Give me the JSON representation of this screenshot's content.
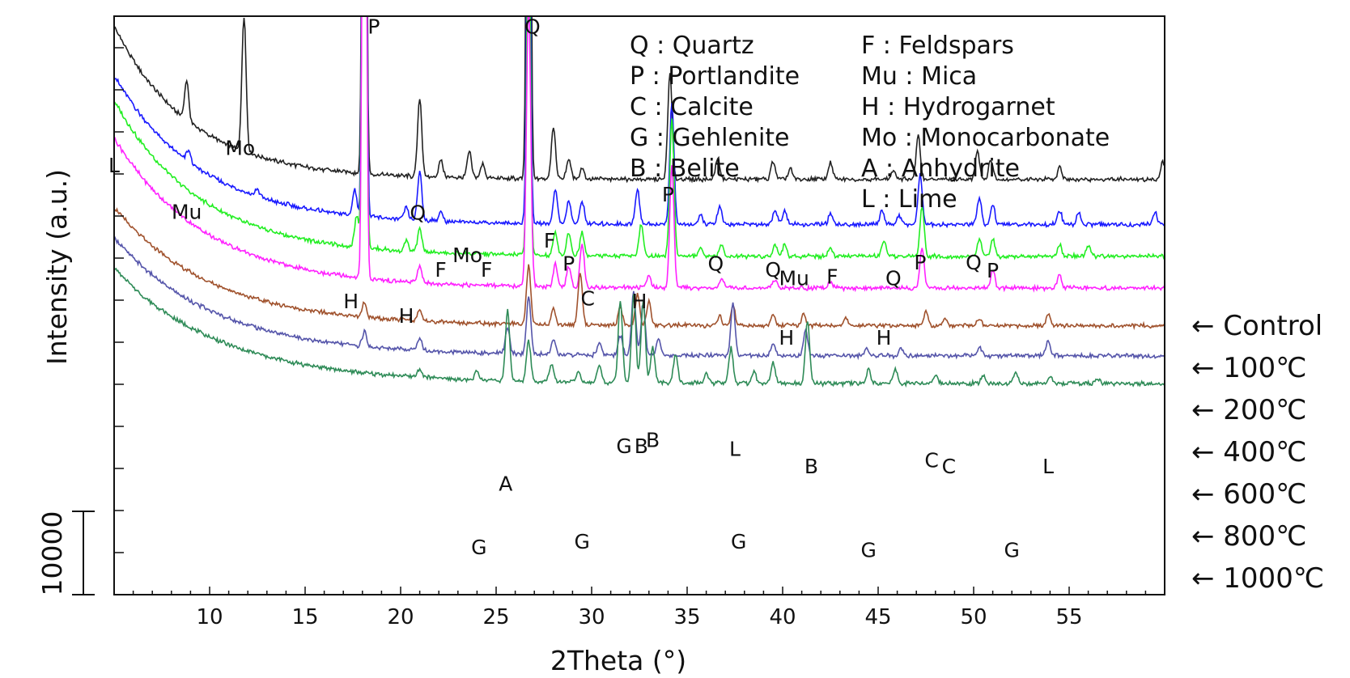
{
  "chart_data": {
    "type": "line",
    "xlabel": "2Theta (°)",
    "ylabel": "Intensity (a.u.)",
    "xlim": [
      5,
      60
    ],
    "x_ticks": [
      10,
      15,
      20,
      25,
      30,
      35,
      40,
      45,
      50,
      55
    ],
    "scale_bar_label": "10000",
    "legend": [
      {
        "text": "Q : Quartz"
      },
      {
        "text": "P : Portlandite"
      },
      {
        "text": "C : Calcite"
      },
      {
        "text": "G : Gehlenite"
      },
      {
        "text": "B : Belite"
      },
      {
        "text": "F : Feldspars"
      },
      {
        "text": "Mu : Mica"
      },
      {
        "text": "H : Hydrogarnet"
      },
      {
        "text": "Mo : Monocarbonate"
      },
      {
        "text": "A : Anhydrite"
      },
      {
        "text": "L : Lime"
      }
    ],
    "series": [
      {
        "name": "← Control",
        "color": "#222222",
        "base": 0.718,
        "rise": 0.265,
        "decay": 4.0,
        "peaks": [
          [
            8.8,
            0.068
          ],
          [
            11.8,
            0.235
          ],
          [
            18.1,
            1.5
          ],
          [
            21.0,
            0.135
          ],
          [
            22.1,
            0.03
          ],
          [
            23.6,
            0.045
          ],
          [
            24.3,
            0.025
          ],
          [
            26.7,
            1.5
          ],
          [
            28.0,
            0.09
          ],
          [
            28.8,
            0.035
          ],
          [
            29.5,
            0.02
          ],
          [
            34.1,
            0.185
          ],
          [
            36.6,
            0.038
          ],
          [
            39.5,
            0.032
          ],
          [
            40.4,
            0.018
          ],
          [
            42.5,
            0.028
          ],
          [
            45.8,
            0.015
          ],
          [
            47.1,
            0.075
          ],
          [
            50.2,
            0.05
          ],
          [
            50.9,
            0.035
          ],
          [
            54.5,
            0.02
          ],
          [
            59.9,
            0.03
          ]
        ]
      },
      {
        "name": "← 100℃",
        "color": "#1a1aff",
        "base": 0.64,
        "rise": 0.258,
        "decay": 4.5,
        "peaks": [
          [
            8.9,
            0.02
          ],
          [
            12.5,
            0.012
          ],
          [
            17.6,
            0.045
          ],
          [
            18.1,
            1.5
          ],
          [
            20.3,
            0.02
          ],
          [
            21.0,
            0.085
          ],
          [
            22.1,
            0.015
          ],
          [
            26.7,
            0.82
          ],
          [
            28.1,
            0.06
          ],
          [
            28.8,
            0.04
          ],
          [
            29.5,
            0.04
          ],
          [
            32.4,
            0.06
          ],
          [
            34.2,
            0.21
          ],
          [
            35.7,
            0.015
          ],
          [
            36.7,
            0.03
          ],
          [
            39.6,
            0.025
          ],
          [
            40.1,
            0.025
          ],
          [
            42.5,
            0.018
          ],
          [
            45.2,
            0.025
          ],
          [
            46.1,
            0.015
          ],
          [
            47.2,
            0.085
          ],
          [
            50.3,
            0.045
          ],
          [
            51.0,
            0.035
          ],
          [
            54.5,
            0.025
          ],
          [
            55.5,
            0.02
          ],
          [
            59.5,
            0.02
          ]
        ]
      },
      {
        "name": "← 200℃",
        "color": "#22ee22",
        "base": 0.585,
        "rise": 0.27,
        "decay": 4.5,
        "peaks": [
          [
            17.7,
            0.055
          ],
          [
            18.1,
            1.5
          ],
          [
            20.3,
            0.018
          ],
          [
            21.0,
            0.04
          ],
          [
            26.7,
            0.68
          ],
          [
            28.1,
            0.04
          ],
          [
            28.8,
            0.04
          ],
          [
            29.5,
            0.04
          ],
          [
            32.6,
            0.055
          ],
          [
            34.2,
            0.24
          ],
          [
            35.7,
            0.015
          ],
          [
            36.8,
            0.02
          ],
          [
            39.6,
            0.02
          ],
          [
            40.1,
            0.02
          ],
          [
            42.5,
            0.015
          ],
          [
            45.3,
            0.025
          ],
          [
            47.3,
            0.085
          ],
          [
            50.3,
            0.03
          ],
          [
            51.0,
            0.03
          ],
          [
            54.5,
            0.02
          ],
          [
            56.0,
            0.018
          ]
        ]
      },
      {
        "name": "← 400℃",
        "color": "#ff22ff",
        "base": 0.53,
        "rise": 0.26,
        "decay": 4.8,
        "peaks": [
          [
            18.1,
            1.5
          ],
          [
            21.0,
            0.03
          ],
          [
            26.7,
            0.5
          ],
          [
            28.1,
            0.04
          ],
          [
            28.8,
            0.035
          ],
          [
            29.5,
            0.075
          ],
          [
            33.0,
            0.02
          ],
          [
            34.2,
            0.21
          ],
          [
            36.8,
            0.015
          ],
          [
            39.6,
            0.015
          ],
          [
            42.5,
            0.012
          ],
          [
            47.3,
            0.07
          ],
          [
            51.0,
            0.03
          ],
          [
            54.5,
            0.025
          ]
        ]
      },
      {
        "name": "← 600℃",
        "color": "#a0522d",
        "base": 0.465,
        "rise": 0.205,
        "decay": 5.0,
        "peaks": [
          [
            18.1,
            0.025
          ],
          [
            21.0,
            0.02
          ],
          [
            26.7,
            0.1
          ],
          [
            28.0,
            0.025
          ],
          [
            29.4,
            0.09
          ],
          [
            31.5,
            0.03
          ],
          [
            32.4,
            0.055
          ],
          [
            33.0,
            0.04
          ],
          [
            36.7,
            0.015
          ],
          [
            37.4,
            0.035
          ],
          [
            39.5,
            0.02
          ],
          [
            41.1,
            0.02
          ],
          [
            43.3,
            0.012
          ],
          [
            47.5,
            0.025
          ],
          [
            48.5,
            0.012
          ],
          [
            50.3,
            0.012
          ],
          [
            53.9,
            0.02
          ]
        ]
      },
      {
        "name": "← 800℃",
        "color": "#5555aa",
        "base": 0.413,
        "rise": 0.205,
        "decay": 5.2,
        "peaks": [
          [
            18.1,
            0.025
          ],
          [
            21.0,
            0.02
          ],
          [
            25.6,
            0.045
          ],
          [
            26.7,
            0.1
          ],
          [
            28.0,
            0.025
          ],
          [
            30.4,
            0.02
          ],
          [
            31.5,
            0.035
          ],
          [
            32.2,
            0.11
          ],
          [
            32.7,
            0.09
          ],
          [
            33.5,
            0.03
          ],
          [
            37.4,
            0.09
          ],
          [
            39.5,
            0.02
          ],
          [
            41.2,
            0.045
          ],
          [
            44.4,
            0.012
          ],
          [
            46.2,
            0.012
          ],
          [
            50.3,
            0.015
          ],
          [
            53.9,
            0.025
          ]
        ]
      },
      {
        "name": "← 1000℃",
        "color": "#2e8b57",
        "base": 0.365,
        "rise": 0.2,
        "decay": 5.5,
        "peaks": [
          [
            21.0,
            0.015
          ],
          [
            24.0,
            0.015
          ],
          [
            25.6,
            0.12
          ],
          [
            26.7,
            0.07
          ],
          [
            27.9,
            0.03
          ],
          [
            29.3,
            0.02
          ],
          [
            30.4,
            0.03
          ],
          [
            31.5,
            0.14
          ],
          [
            32.2,
            0.15
          ],
          [
            32.7,
            0.14
          ],
          [
            33.2,
            0.06
          ],
          [
            34.4,
            0.05
          ],
          [
            36.0,
            0.015
          ],
          [
            37.3,
            0.06
          ],
          [
            38.5,
            0.02
          ],
          [
            39.5,
            0.035
          ],
          [
            41.3,
            0.11
          ],
          [
            44.5,
            0.025
          ],
          [
            45.9,
            0.025
          ],
          [
            48.0,
            0.015
          ],
          [
            50.5,
            0.015
          ],
          [
            52.2,
            0.02
          ],
          [
            54.0,
            0.012
          ],
          [
            56.5,
            0.01
          ]
        ]
      }
    ],
    "peak_annotations": [
      {
        "text": "P",
        "x": 18.6,
        "y": 0.97
      },
      {
        "text": "Q",
        "x": 26.9,
        "y": 0.97
      },
      {
        "text": "Mo",
        "x": 11.6,
        "y": 0.76
      },
      {
        "text": "Mu",
        "x": 8.8,
        "y": 0.65
      },
      {
        "text": "L",
        "x": 5.0,
        "y": 0.73
      },
      {
        "text": "Q",
        "x": 20.9,
        "y": 0.648
      },
      {
        "text": "F",
        "x": 22.1,
        "y": 0.55
      },
      {
        "text": "Mo",
        "x": 23.5,
        "y": 0.575
      },
      {
        "text": "F",
        "x": 24.5,
        "y": 0.55
      },
      {
        "text": "F",
        "x": 27.8,
        "y": 0.6
      },
      {
        "text": "P",
        "x": 28.8,
        "y": 0.56
      },
      {
        "text": "P",
        "x": 34.0,
        "y": 0.68
      },
      {
        "text": "Q",
        "x": 36.5,
        "y": 0.56
      },
      {
        "text": "Q",
        "x": 39.5,
        "y": 0.55
      },
      {
        "text": "Mu",
        "x": 40.6,
        "y": 0.535
      },
      {
        "text": "F",
        "x": 42.6,
        "y": 0.538
      },
      {
        "text": "Q",
        "x": 45.8,
        "y": 0.535
      },
      {
        "text": "P",
        "x": 47.2,
        "y": 0.562
      },
      {
        "text": "Q",
        "x": 50.0,
        "y": 0.562
      },
      {
        "text": "P",
        "x": 51.0,
        "y": 0.548
      },
      {
        "text": "H",
        "x": 17.4,
        "y": 0.495
      },
      {
        "text": "H",
        "x": 20.3,
        "y": 0.47
      },
      {
        "text": "C",
        "x": 29.8,
        "y": 0.5
      },
      {
        "text": "H",
        "x": 32.5,
        "y": 0.495
      },
      {
        "text": "H",
        "x": 40.2,
        "y": 0.432
      },
      {
        "text": "H",
        "x": 45.3,
        "y": 0.432
      },
      {
        "text": "B",
        "x": 32.6,
        "y": 0.245
      },
      {
        "text": "B",
        "x": 33.2,
        "y": 0.255
      },
      {
        "text": "G",
        "x": 31.7,
        "y": 0.245
      },
      {
        "text": "L",
        "x": 37.5,
        "y": 0.24
      },
      {
        "text": "B",
        "x": 41.5,
        "y": 0.21
      },
      {
        "text": "C",
        "x": 47.8,
        "y": 0.22
      },
      {
        "text": "C",
        "x": 48.7,
        "y": 0.21
      },
      {
        "text": "L",
        "x": 53.9,
        "y": 0.21
      },
      {
        "text": "A",
        "x": 25.5,
        "y": 0.18
      },
      {
        "text": "G",
        "x": 24.1,
        "y": 0.07
      },
      {
        "text": "G",
        "x": 29.5,
        "y": 0.08
      },
      {
        "text": "G",
        "x": 37.7,
        "y": 0.08
      },
      {
        "text": "G",
        "x": 44.5,
        "y": 0.065
      },
      {
        "text": "G",
        "x": 52.0,
        "y": 0.065
      }
    ]
  }
}
